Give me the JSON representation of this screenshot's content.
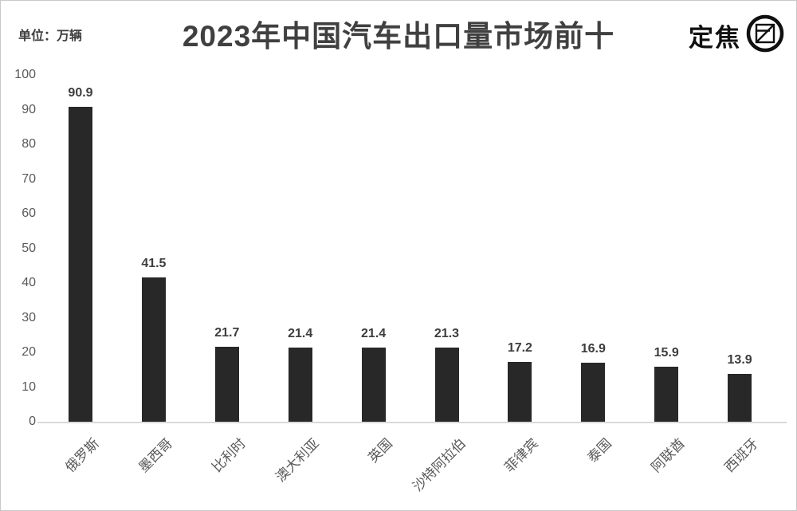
{
  "header": {
    "unit_label": "单位：万辆",
    "title": "2023年中国汽车出口量市场前十",
    "brand": {
      "name": "定焦",
      "icon": "aperture-logo-icon"
    }
  },
  "chart_data": {
    "type": "bar",
    "title": "2023年中国汽车出口量市场前十",
    "unit": "万辆",
    "categories": [
      "俄罗斯",
      "墨西哥",
      "比利时",
      "澳大利亚",
      "英国",
      "沙特阿拉伯",
      "菲律宾",
      "泰国",
      "阿联酋",
      "西班牙"
    ],
    "values": [
      90.9,
      41.5,
      21.7,
      21.4,
      21.4,
      21.3,
      17.2,
      16.9,
      15.9,
      13.9
    ],
    "value_labels": [
      "90.9",
      "41.5",
      "21.7",
      "21.4",
      "21.4",
      "21.3",
      "17.2",
      "16.9",
      "15.9",
      "13.9"
    ],
    "xlabel": "",
    "ylabel": "",
    "ylim": [
      0,
      100
    ],
    "ytick_interval": 10,
    "xtick_rotation_deg": 45,
    "grid": false,
    "legend": false,
    "colors": {
      "bar": "#282828",
      "value_label": "#3d3d3d",
      "axis_tick_label": "#595959",
      "axis_line": "#d9d9d9",
      "title": "#404040",
      "brand": "#101010"
    }
  }
}
